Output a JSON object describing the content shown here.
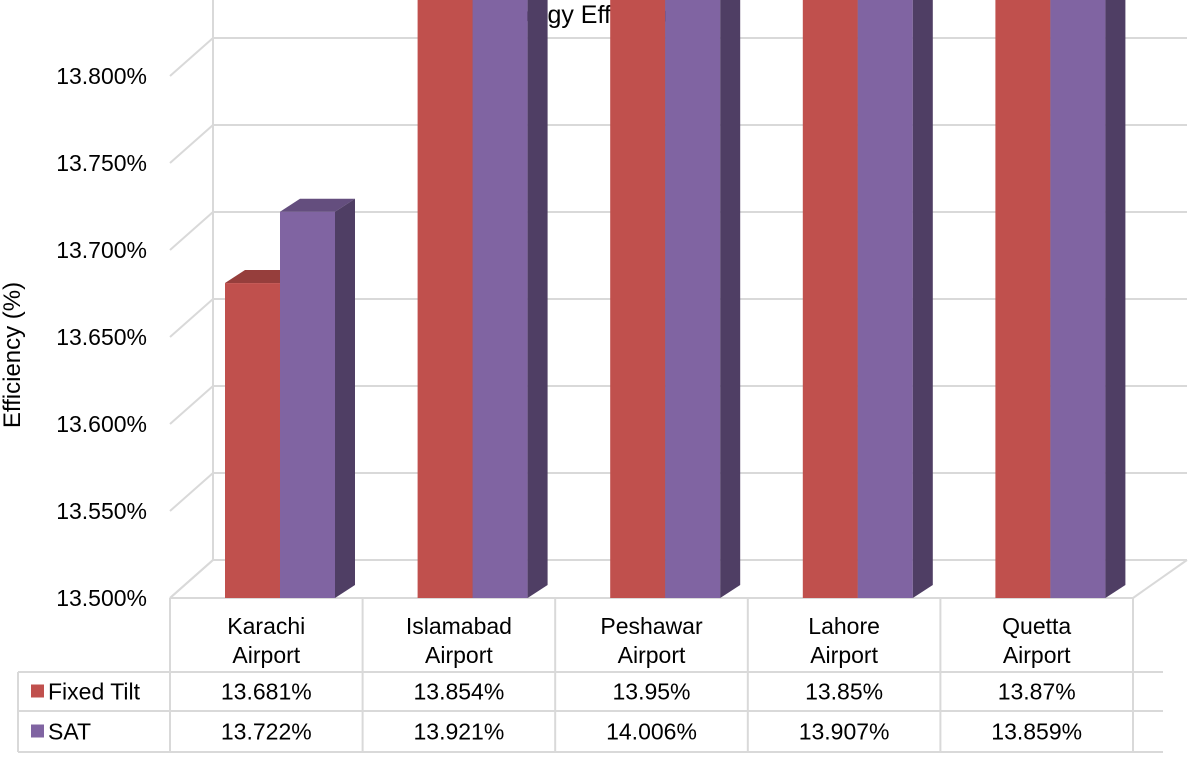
{
  "chart_data": {
    "type": "bar",
    "title": "Energy Efficiency",
    "xlabel": "",
    "ylabel": "Efficiency (%)",
    "ylim": [
      13.5,
      14.05
    ],
    "ytick_step": 0.05,
    "ytick_decimals": 3,
    "grid": true,
    "legend_placement": "data-table-left",
    "categories": [
      [
        "Karachi",
        "Airport"
      ],
      [
        "Islamabad",
        "Airport"
      ],
      [
        "Peshawar",
        "Airport"
      ],
      [
        "Lahore",
        "Airport"
      ],
      [
        "Quetta",
        "Airport"
      ]
    ],
    "series": [
      {
        "name": "Fixed Tilt",
        "color": "#c0504d",
        "values": [
          13.681,
          13.854,
          13.95,
          13.85,
          13.87
        ],
        "labels": [
          "13.681%",
          "13.854%",
          "13.95%",
          "13.85%",
          "13.87%"
        ]
      },
      {
        "name": "SAT",
        "color": "#8064a2",
        "values": [
          13.722,
          13.921,
          14.006,
          13.907,
          13.859
        ],
        "labels": [
          "13.722%",
          "13.921%",
          "14.006%",
          "13.907%",
          "13.859%"
        ]
      }
    ]
  }
}
